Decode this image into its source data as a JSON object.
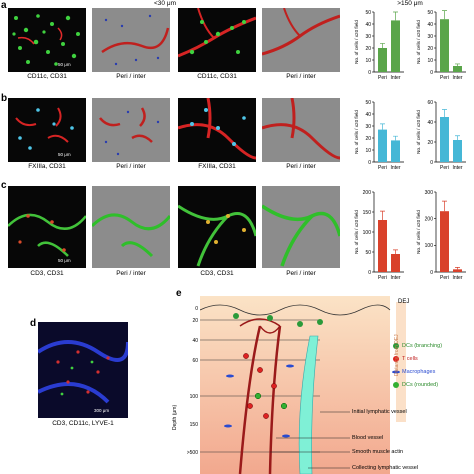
{
  "panels": {
    "a": {
      "letter": "a",
      "header_left": "<30 μm",
      "header_right": ">150 μm",
      "cap_micro": [
        "CD11c, CD31",
        "Peri / inter",
        "CD11c, CD31",
        "Peri / inter"
      ],
      "scale": "50 μm"
    },
    "b": {
      "letter": "b",
      "cap_micro": [
        "FXIIIa, CD31",
        "Peri / inter",
        "FXIIIa, CD31",
        "Peri / inter"
      ],
      "scale": "50 μm"
    },
    "c": {
      "letter": "c",
      "cap_micro": [
        "CD3, CD31",
        "Peri / inter",
        "CD3, CD31",
        "Peri / inter"
      ],
      "scale": "50 μm"
    },
    "d": {
      "letter": "d",
      "caption": "CD3, CD11c, LYVE-1",
      "scale": "300 μm"
    },
    "e": {
      "letter": "e",
      "dej": "DEJ",
      "ylabel": "Depth (μm)",
      "depth_ticks": [
        "0",
        "20",
        "40",
        "60",
        "100",
        "150",
        ">500"
      ],
      "side_label": "Distance from DEJ",
      "legend": [
        "DCs (branching)",
        "T cells",
        "Macrophages",
        "DCs (rounded)"
      ],
      "structure_labels": [
        "Initial lymphatic vessel",
        "Blood vessel",
        "Smooth muscle actin",
        "Collecting lymphatic vessel"
      ]
    }
  },
  "chart_data": [
    {
      "type": "bar",
      "row": "a",
      "title": "<30 μm",
      "categories": [
        "Peri",
        "Inter"
      ],
      "values": [
        20,
        43
      ],
      "ylabel": "No. of cells / x20 field",
      "ylim": [
        0,
        50
      ],
      "ticks": [
        "0",
        "10",
        "20",
        "30",
        "40",
        "50"
      ],
      "color": "#5aa54a"
    },
    {
      "type": "bar",
      "row": "a",
      "title": ">150 μm",
      "categories": [
        "Peri",
        "Inter"
      ],
      "values": [
        44,
        5
      ],
      "ylabel": "No. of cells / x20 field",
      "ylim": [
        0,
        50
      ],
      "ticks": [
        "0",
        "10",
        "20",
        "30",
        "40",
        "50"
      ],
      "color": "#5aa54a"
    },
    {
      "type": "bar",
      "row": "b",
      "categories": [
        "Peri",
        "Inter"
      ],
      "values": [
        27,
        18
      ],
      "ylabel": "No. of cells / x20 field",
      "ylim": [
        0,
        50
      ],
      "ticks": [
        "0",
        "10",
        "20",
        "30",
        "40",
        "50"
      ],
      "color": "#45b7d6"
    },
    {
      "type": "bar",
      "row": "b",
      "categories": [
        "Peri",
        "Inter"
      ],
      "values": [
        45,
        22
      ],
      "ylabel": "No. of cells / x20 field",
      "ylim": [
        0,
        60
      ],
      "ticks": [
        "0",
        "20",
        "40",
        "60"
      ],
      "color": "#45b7d6"
    },
    {
      "type": "bar",
      "row": "c",
      "categories": [
        "Peri",
        "Inter"
      ],
      "values": [
        130,
        45
      ],
      "ylabel": "No. of cells / x20 field",
      "ylim": [
        0,
        200
      ],
      "ticks": [
        "0",
        "50",
        "100",
        "150",
        "200"
      ],
      "color": "#d9412b"
    },
    {
      "type": "bar",
      "row": "c",
      "categories": [
        "Peri",
        "Inter"
      ],
      "values": [
        228,
        10
      ],
      "ylabel": "No. of cells / x20 field",
      "ylim": [
        0,
        300
      ],
      "ticks": [
        "0",
        "100",
        "200",
        "300"
      ],
      "color": "#d9412b"
    }
  ]
}
